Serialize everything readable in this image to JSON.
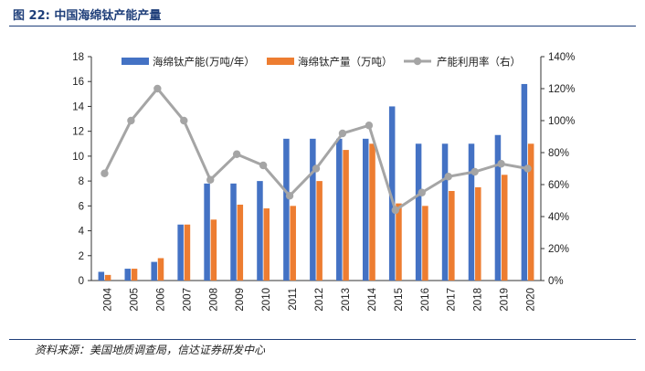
{
  "figure_title": "图 22: 中国海绵钛产能产量",
  "source_note": "资料来源：美国地质调查局，信达证券研发中心",
  "chart_data": {
    "type": "bar",
    "title": "",
    "xlabel": "",
    "ylabel": "",
    "categories": [
      "2004",
      "2005",
      "2006",
      "2007",
      "2008",
      "2009",
      "2010",
      "2011",
      "2012",
      "2013",
      "2014",
      "2015",
      "2016",
      "2017",
      "2018",
      "2019",
      "2020"
    ],
    "series": [
      {
        "name": "海绵钛产能(万吨/年）",
        "type": "bar",
        "axis": "left",
        "color": "#4472C4",
        "values": [
          0.7,
          0.95,
          1.5,
          4.5,
          7.8,
          7.8,
          8.0,
          11.4,
          11.4,
          11.4,
          11.4,
          14.0,
          11.0,
          11.0,
          11.0,
          11.7,
          15.8
        ]
      },
      {
        "name": "海绵钛产量（万吨）",
        "type": "bar",
        "axis": "left",
        "color": "#ED7D31",
        "values": [
          0.45,
          0.95,
          1.8,
          4.5,
          4.9,
          6.1,
          5.8,
          6.0,
          8.0,
          10.5,
          11.0,
          6.2,
          6.0,
          7.2,
          7.5,
          8.5,
          11.0
        ]
      },
      {
        "name": "产能利用率（右）",
        "type": "line",
        "axis": "right",
        "color": "#A5A5A5",
        "values": [
          0.67,
          1.0,
          1.2,
          1.0,
          0.63,
          0.79,
          0.72,
          0.53,
          0.7,
          0.92,
          0.97,
          0.44,
          0.55,
          0.65,
          0.68,
          0.73,
          0.7
        ]
      }
    ],
    "ylim_left": [
      0,
      18
    ],
    "yticks_left": [
      0,
      2,
      4,
      6,
      8,
      10,
      12,
      14,
      16,
      18
    ],
    "ylim_right": [
      0,
      1.4
    ],
    "yticks_right_labels": [
      "0%",
      "20%",
      "40%",
      "60%",
      "80%",
      "100%",
      "120%",
      "140%"
    ],
    "grid": false,
    "legend": "top"
  }
}
